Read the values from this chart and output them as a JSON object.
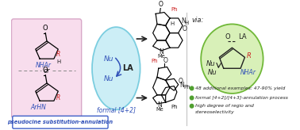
{
  "bg_color": "#ffffff",
  "left_box_color": "#f8dded",
  "left_box_edge": "#d8a8c8",
  "center_ellipse_color": "#c5ecf5",
  "center_ellipse_edge": "#6dc8dc",
  "right_circle_color": "#d8f0b8",
  "right_circle_edge": "#70b838",
  "bottom_box_edge": "#4060c8",
  "bullet_color": "#50a030",
  "arrow_color": "#303030",
  "col_red": "#cc2020",
  "col_blue": "#3050b8",
  "col_dark": "#202020",
  "col_black": "#000000",
  "title": "pseudocine substitution-annulation",
  "bullet1": "48 additional examples: 47-90% yield",
  "bullet2": "formal [4+2]/[4+3]-annulation process",
  "bullet3": "high degree of regio and",
  "bullet3b": "stereoselectivity",
  "figsize": [
    3.78,
    1.64
  ],
  "dpi": 100
}
